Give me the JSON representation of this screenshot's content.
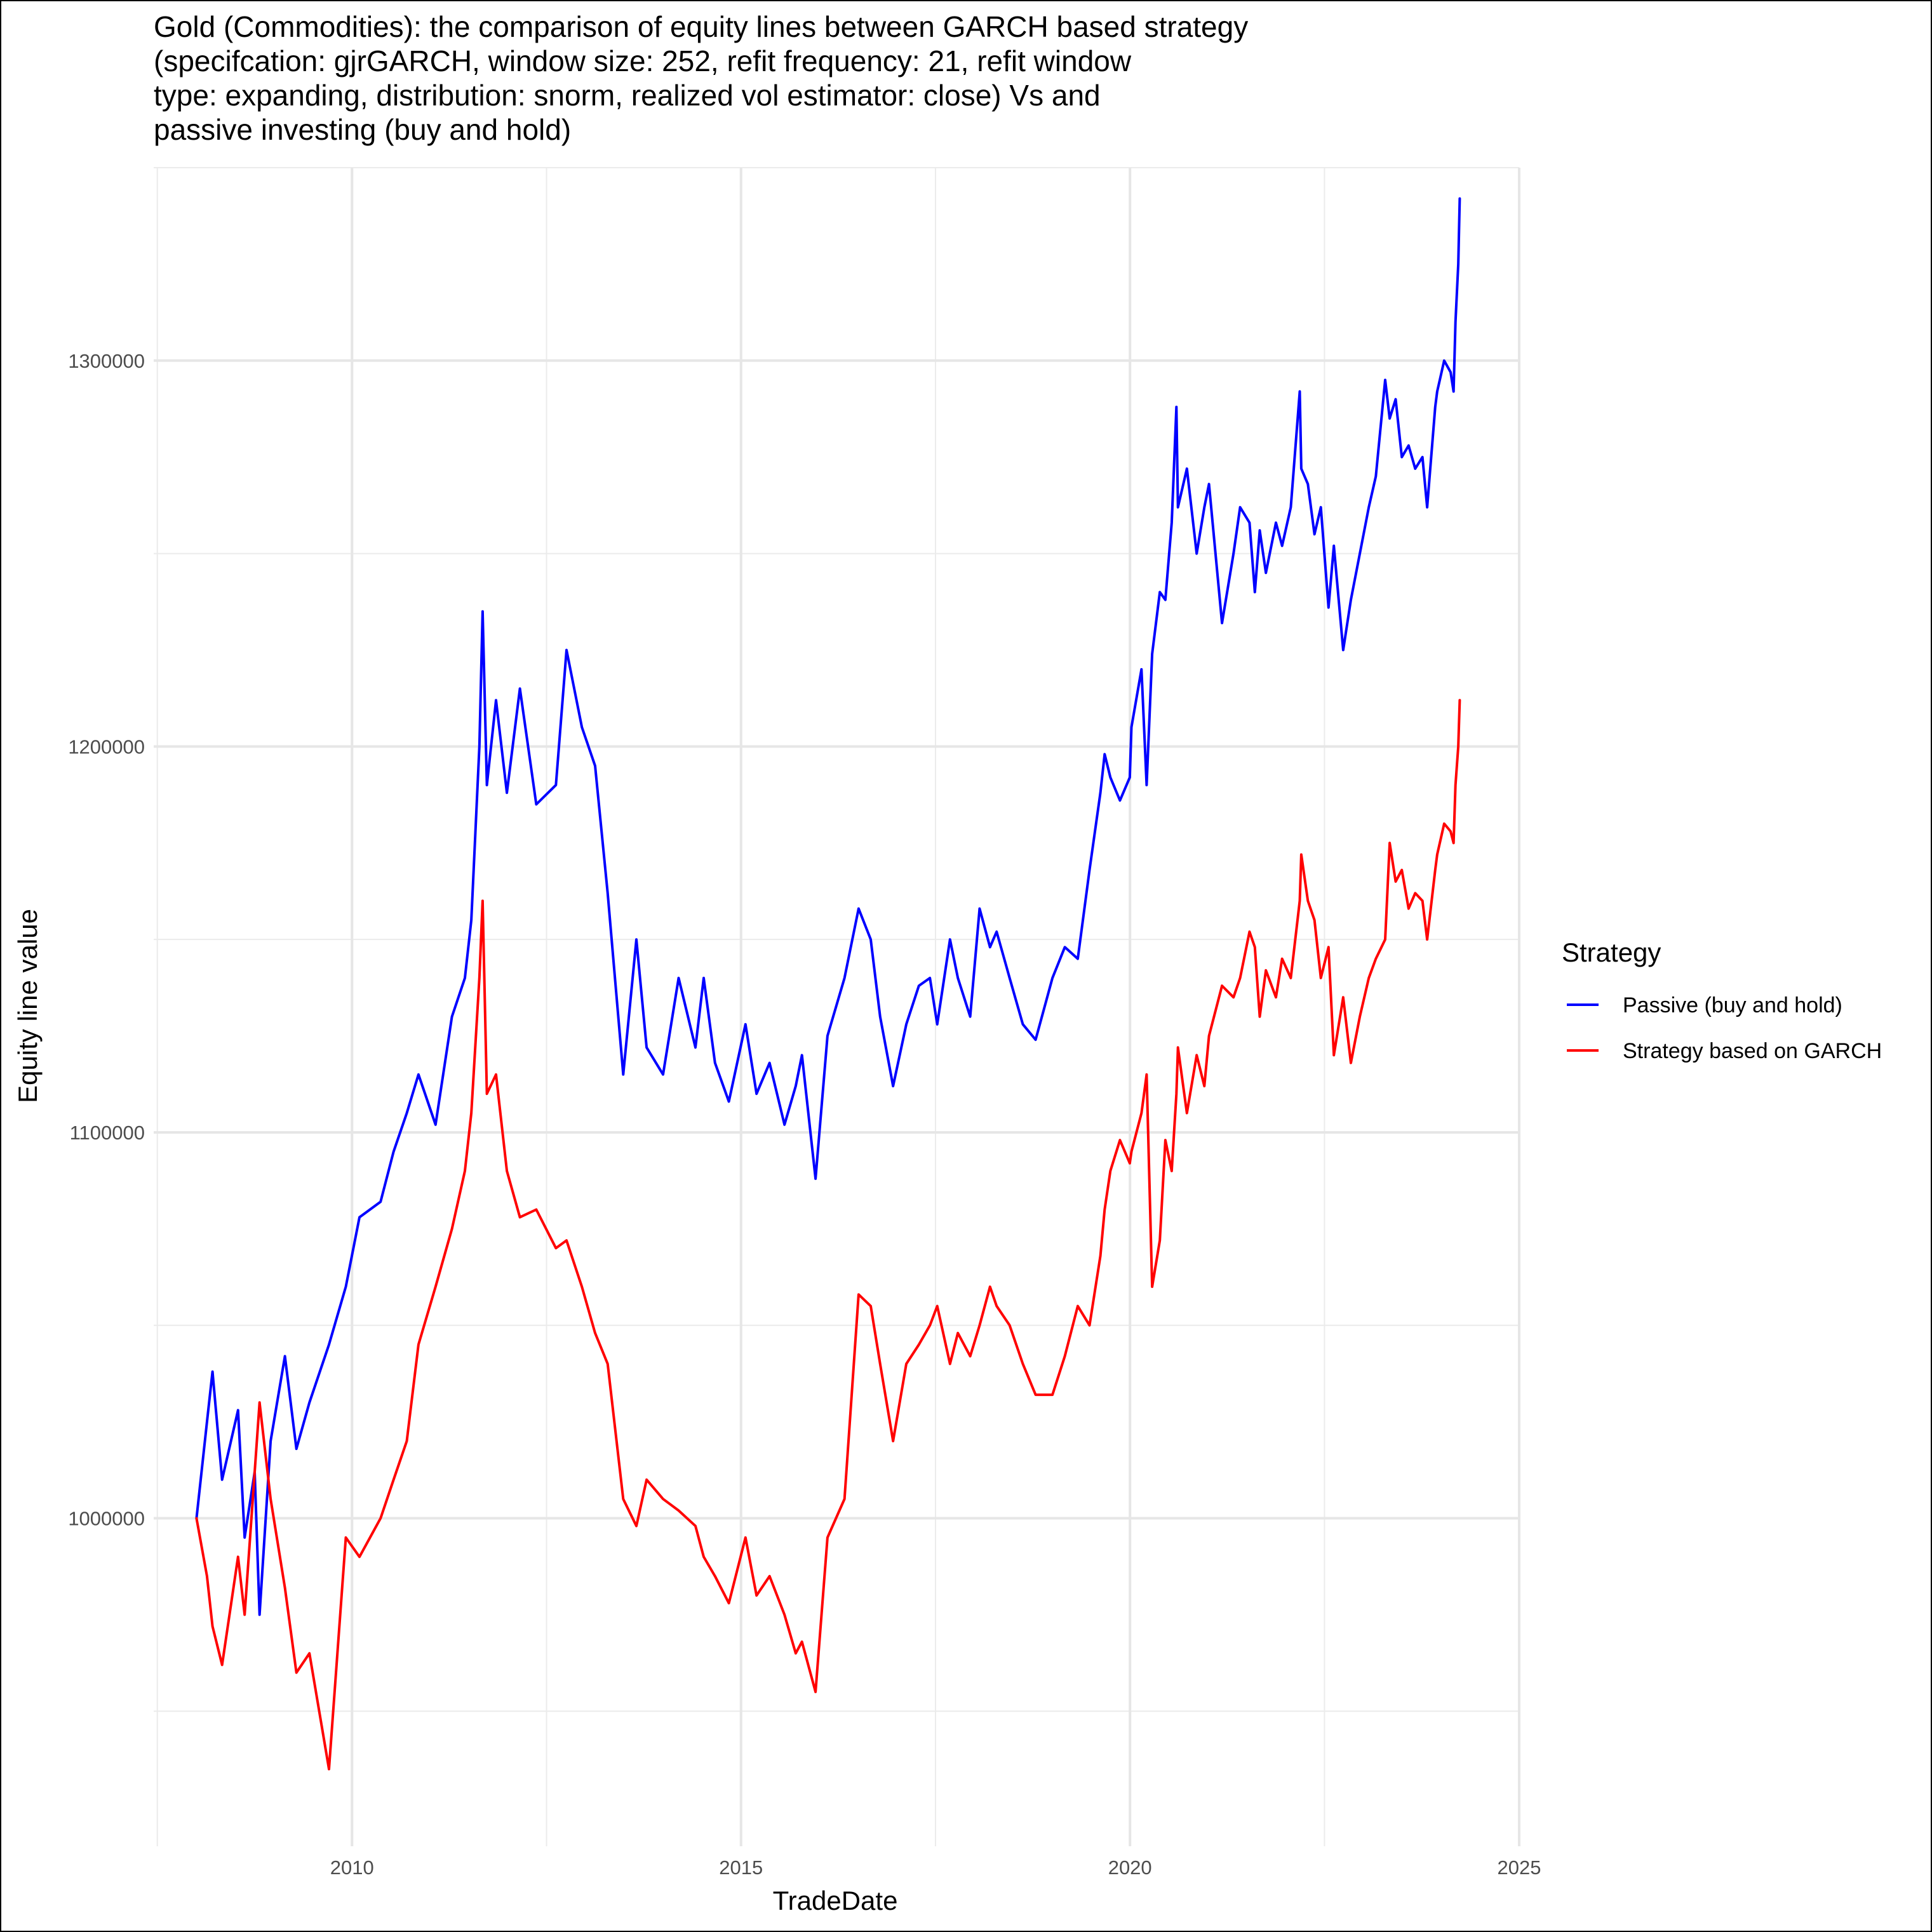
{
  "chart_data": {
    "type": "line",
    "title_lines": [
      "Gold (Commodities): the comparison of equity lines between GARCH based strategy",
      "(specifcation: gjrGARCH, window size: 252, refit frequency: 21, refit window",
      "type: expanding, distribution: snorm, realized vol estimator: close) Vs and",
      "passive investing (buy and hold)"
    ],
    "xlabel": "TradeDate",
    "ylabel": "Equity line value",
    "x_ticks": [
      "2010",
      "2015",
      "2020",
      "2025"
    ],
    "y_ticks": [
      "1000000",
      "1100000",
      "1200000",
      "1300000"
    ],
    "xlim": [
      "2007-06-15",
      "2025-01-01"
    ],
    "ylim": [
      915000,
      1350000
    ],
    "grid": true,
    "legend": {
      "title": "Strategy",
      "placement": "right"
    },
    "series": [
      {
        "name": "Passive (buy and hold)",
        "color": "#0000ff",
        "x": [
          "2008-01-02",
          "2008-02-20",
          "2008-03-17",
          "2008-05-01",
          "2008-07-15",
          "2008-08-15",
          "2008-10-01",
          "2008-10-24",
          "2008-12-15",
          "2009-02-20",
          "2009-04-15",
          "2009-06-15",
          "2009-09-15",
          "2009-12-03",
          "2010-02-05",
          "2010-05-15",
          "2010-07-15",
          "2010-09-15",
          "2010-11-09",
          "2011-01-28",
          "2011-04-15",
          "2011-06-15",
          "2011-07-15",
          "2011-08-22",
          "2011-09-06",
          "2011-09-26",
          "2011-11-08",
          "2011-12-29",
          "2012-02-28",
          "2012-05-15",
          "2012-08-15",
          "2012-10-04",
          "2012-12-15",
          "2013-02-15",
          "2013-04-15",
          "2013-06-27",
          "2013-08-28",
          "2013-10-15",
          "2013-12-31",
          "2014-03-14",
          "2014-06-01",
          "2014-07-10",
          "2014-09-01",
          "2014-11-05",
          "2015-01-22",
          "2015-03-15",
          "2015-05-15",
          "2015-07-24",
          "2015-09-15",
          "2015-10-14",
          "2015-12-17",
          "2016-02-11",
          "2016-05-01",
          "2016-07-06",
          "2016-09-01",
          "2016-10-15",
          "2016-12-15",
          "2017-02-15",
          "2017-04-15",
          "2017-06-06",
          "2017-07-10",
          "2017-09-08",
          "2017-10-15",
          "2017-12-12",
          "2018-01-25",
          "2018-03-15",
          "2018-04-15",
          "2018-06-15",
          "2018-08-16",
          "2018-10-15",
          "2019-01-02",
          "2019-03-01",
          "2019-05-01",
          "2019-06-25",
          "2019-08-15",
          "2019-09-04",
          "2019-10-01",
          "2019-11-15",
          "2019-12-31",
          "2020-01-08",
          "2020-02-24",
          "2020-03-19",
          "2020-04-14",
          "2020-05-20",
          "2020-06-15",
          "2020-07-15",
          "2020-08-06",
          "2020-08-13",
          "2020-09-24",
          "2020-11-09",
          "2020-12-15",
          "2021-01-06",
          "2021-03-08",
          "2021-05-01",
          "2021-06-01",
          "2021-07-15",
          "2021-08-09",
          "2021-09-01",
          "2021-09-30",
          "2021-11-16",
          "2021-12-15",
          "2022-01-25",
          "2022-03-08",
          "2022-03-15",
          "2022-04-15",
          "2022-05-16",
          "2022-06-15",
          "2022-07-21",
          "2022-08-15",
          "2022-09-28",
          "2022-11-03",
          "2022-12-15",
          "2023-01-26",
          "2023-02-28",
          "2023-04-13",
          "2023-05-04",
          "2023-06-01",
          "2023-06-30",
          "2023-08-01",
          "2023-09-01",
          "2023-10-05",
          "2023-10-27",
          "2023-12-04",
          "2023-12-13",
          "2024-01-15",
          "2024-02-14",
          "2024-02-28",
          "2024-03-08",
          "2024-03-21",
          "2024-03-28"
        ],
        "y": [
          1000000,
          1025000,
          1038000,
          1010000,
          1028000,
          995000,
          1012000,
          975000,
          1020000,
          1042000,
          1018000,
          1030000,
          1045000,
          1060000,
          1078000,
          1082000,
          1095000,
          1105000,
          1115000,
          1102000,
          1130000,
          1140000,
          1155000,
          1200000,
          1235000,
          1190000,
          1212000,
          1188000,
          1215000,
          1185000,
          1190000,
          1225000,
          1205000,
          1195000,
          1162000,
          1115000,
          1150000,
          1122000,
          1115000,
          1140000,
          1122000,
          1140000,
          1118000,
          1108000,
          1128000,
          1110000,
          1118000,
          1102000,
          1112000,
          1120000,
          1088000,
          1125000,
          1140000,
          1158000,
          1150000,
          1130000,
          1112000,
          1128000,
          1138000,
          1140000,
          1128000,
          1150000,
          1140000,
          1130000,
          1158000,
          1148000,
          1152000,
          1140000,
          1128000,
          1124000,
          1140000,
          1148000,
          1145000,
          1168000,
          1188000,
          1198000,
          1192000,
          1186000,
          1192000,
          1205000,
          1220000,
          1190000,
          1224000,
          1240000,
          1238000,
          1258000,
          1288000,
          1262000,
          1272000,
          1250000,
          1262000,
          1268000,
          1232000,
          1250000,
          1262000,
          1258000,
          1240000,
          1256000,
          1245000,
          1258000,
          1252000,
          1262000,
          1292000,
          1272000,
          1268000,
          1255000,
          1262000,
          1236000,
          1252000,
          1225000,
          1238000,
          1250000,
          1262000,
          1270000,
          1295000,
          1285000,
          1290000,
          1275000,
          1278000,
          1272000,
          1275000,
          1262000,
          1288000,
          1292000,
          1300000,
          1297000,
          1292000,
          1310000,
          1325000,
          1342000
        ]
      },
      {
        "name": "Strategy based on GARCH",
        "color": "#ff0000",
        "x": [
          "2008-01-02",
          "2008-02-20",
          "2008-03-17",
          "2008-05-01",
          "2008-07-15",
          "2008-08-15",
          "2008-10-24",
          "2008-12-15",
          "2009-02-20",
          "2009-04-15",
          "2009-06-15",
          "2009-09-15",
          "2009-12-03",
          "2010-02-05",
          "2010-05-15",
          "2010-07-15",
          "2010-09-15",
          "2010-11-09",
          "2011-01-28",
          "2011-04-15",
          "2011-06-15",
          "2011-07-15",
          "2011-08-22",
          "2011-09-06",
          "2011-09-26",
          "2011-11-08",
          "2011-12-29",
          "2012-02-28",
          "2012-05-15",
          "2012-08-15",
          "2012-10-04",
          "2012-12-15",
          "2013-02-15",
          "2013-04-15",
          "2013-06-27",
          "2013-08-28",
          "2013-10-15",
          "2013-12-31",
          "2014-03-14",
          "2014-06-01",
          "2014-07-10",
          "2014-09-01",
          "2014-11-05",
          "2015-01-22",
          "2015-03-15",
          "2015-05-15",
          "2015-07-24",
          "2015-09-15",
          "2015-10-14",
          "2015-12-17",
          "2016-02-11",
          "2016-05-01",
          "2016-07-06",
          "2016-09-01",
          "2016-10-15",
          "2016-12-15",
          "2017-02-15",
          "2017-04-15",
          "2017-06-06",
          "2017-07-10",
          "2017-09-08",
          "2017-10-15",
          "2017-12-12",
          "2018-01-25",
          "2018-03-15",
          "2018-04-15",
          "2018-06-15",
          "2018-08-16",
          "2018-10-15",
          "2019-01-02",
          "2019-03-01",
          "2019-05-01",
          "2019-06-25",
          "2019-08-15",
          "2019-09-04",
          "2019-10-01",
          "2019-11-15",
          "2019-12-31",
          "2020-01-08",
          "2020-02-24",
          "2020-03-19",
          "2020-04-14",
          "2020-05-20",
          "2020-06-15",
          "2020-07-15",
          "2020-08-06",
          "2020-08-13",
          "2020-09-24",
          "2020-11-09",
          "2020-12-15",
          "2021-01-06",
          "2021-03-08",
          "2021-05-01",
          "2021-06-01",
          "2021-07-15",
          "2021-08-09",
          "2021-09-01",
          "2021-09-30",
          "2021-11-16",
          "2021-12-15",
          "2022-01-25",
          "2022-03-08",
          "2022-03-15",
          "2022-04-15",
          "2022-05-16",
          "2022-06-15",
          "2022-07-21",
          "2022-08-15",
          "2022-09-28",
          "2022-11-03",
          "2022-12-15",
          "2023-01-26",
          "2023-02-28",
          "2023-04-13",
          "2023-05-04",
          "2023-06-01",
          "2023-06-30",
          "2023-08-01",
          "2023-09-01",
          "2023-10-05",
          "2023-10-27",
          "2023-12-04",
          "2023-12-13",
          "2024-01-15",
          "2024-02-14",
          "2024-02-28",
          "2024-03-08",
          "2024-03-21",
          "2024-03-28"
        ],
        "y": [
          1000000,
          985000,
          972000,
          962000,
          990000,
          975000,
          1030000,
          1005000,
          982000,
          960000,
          965000,
          935000,
          995000,
          990000,
          1000000,
          1010000,
          1020000,
          1045000,
          1060000,
          1075000,
          1090000,
          1105000,
          1140000,
          1160000,
          1110000,
          1115000,
          1090000,
          1078000,
          1080000,
          1070000,
          1072000,
          1060000,
          1048000,
          1040000,
          1005000,
          998000,
          1010000,
          1005000,
          1002000,
          998000,
          990000,
          985000,
          978000,
          995000,
          980000,
          985000,
          975000,
          965000,
          968000,
          955000,
          995000,
          1005000,
          1058000,
          1055000,
          1040000,
          1020000,
          1040000,
          1045000,
          1050000,
          1055000,
          1040000,
          1048000,
          1042000,
          1050000,
          1060000,
          1055000,
          1050000,
          1040000,
          1032000,
          1032000,
          1042000,
          1055000,
          1050000,
          1068000,
          1080000,
          1090000,
          1098000,
          1092000,
          1095000,
          1105000,
          1115000,
          1060000,
          1072000,
          1098000,
          1090000,
          1110000,
          1122000,
          1105000,
          1120000,
          1112000,
          1125000,
          1138000,
          1135000,
          1140000,
          1152000,
          1148000,
          1130000,
          1142000,
          1135000,
          1145000,
          1140000,
          1160000,
          1172000,
          1160000,
          1155000,
          1140000,
          1148000,
          1120000,
          1135000,
          1118000,
          1130000,
          1140000,
          1145000,
          1150000,
          1175000,
          1165000,
          1168000,
          1158000,
          1162000,
          1160000,
          1150000,
          1168000,
          1172000,
          1180000,
          1178000,
          1175000,
          1190000,
          1200000,
          1212000
        ]
      }
    ]
  }
}
